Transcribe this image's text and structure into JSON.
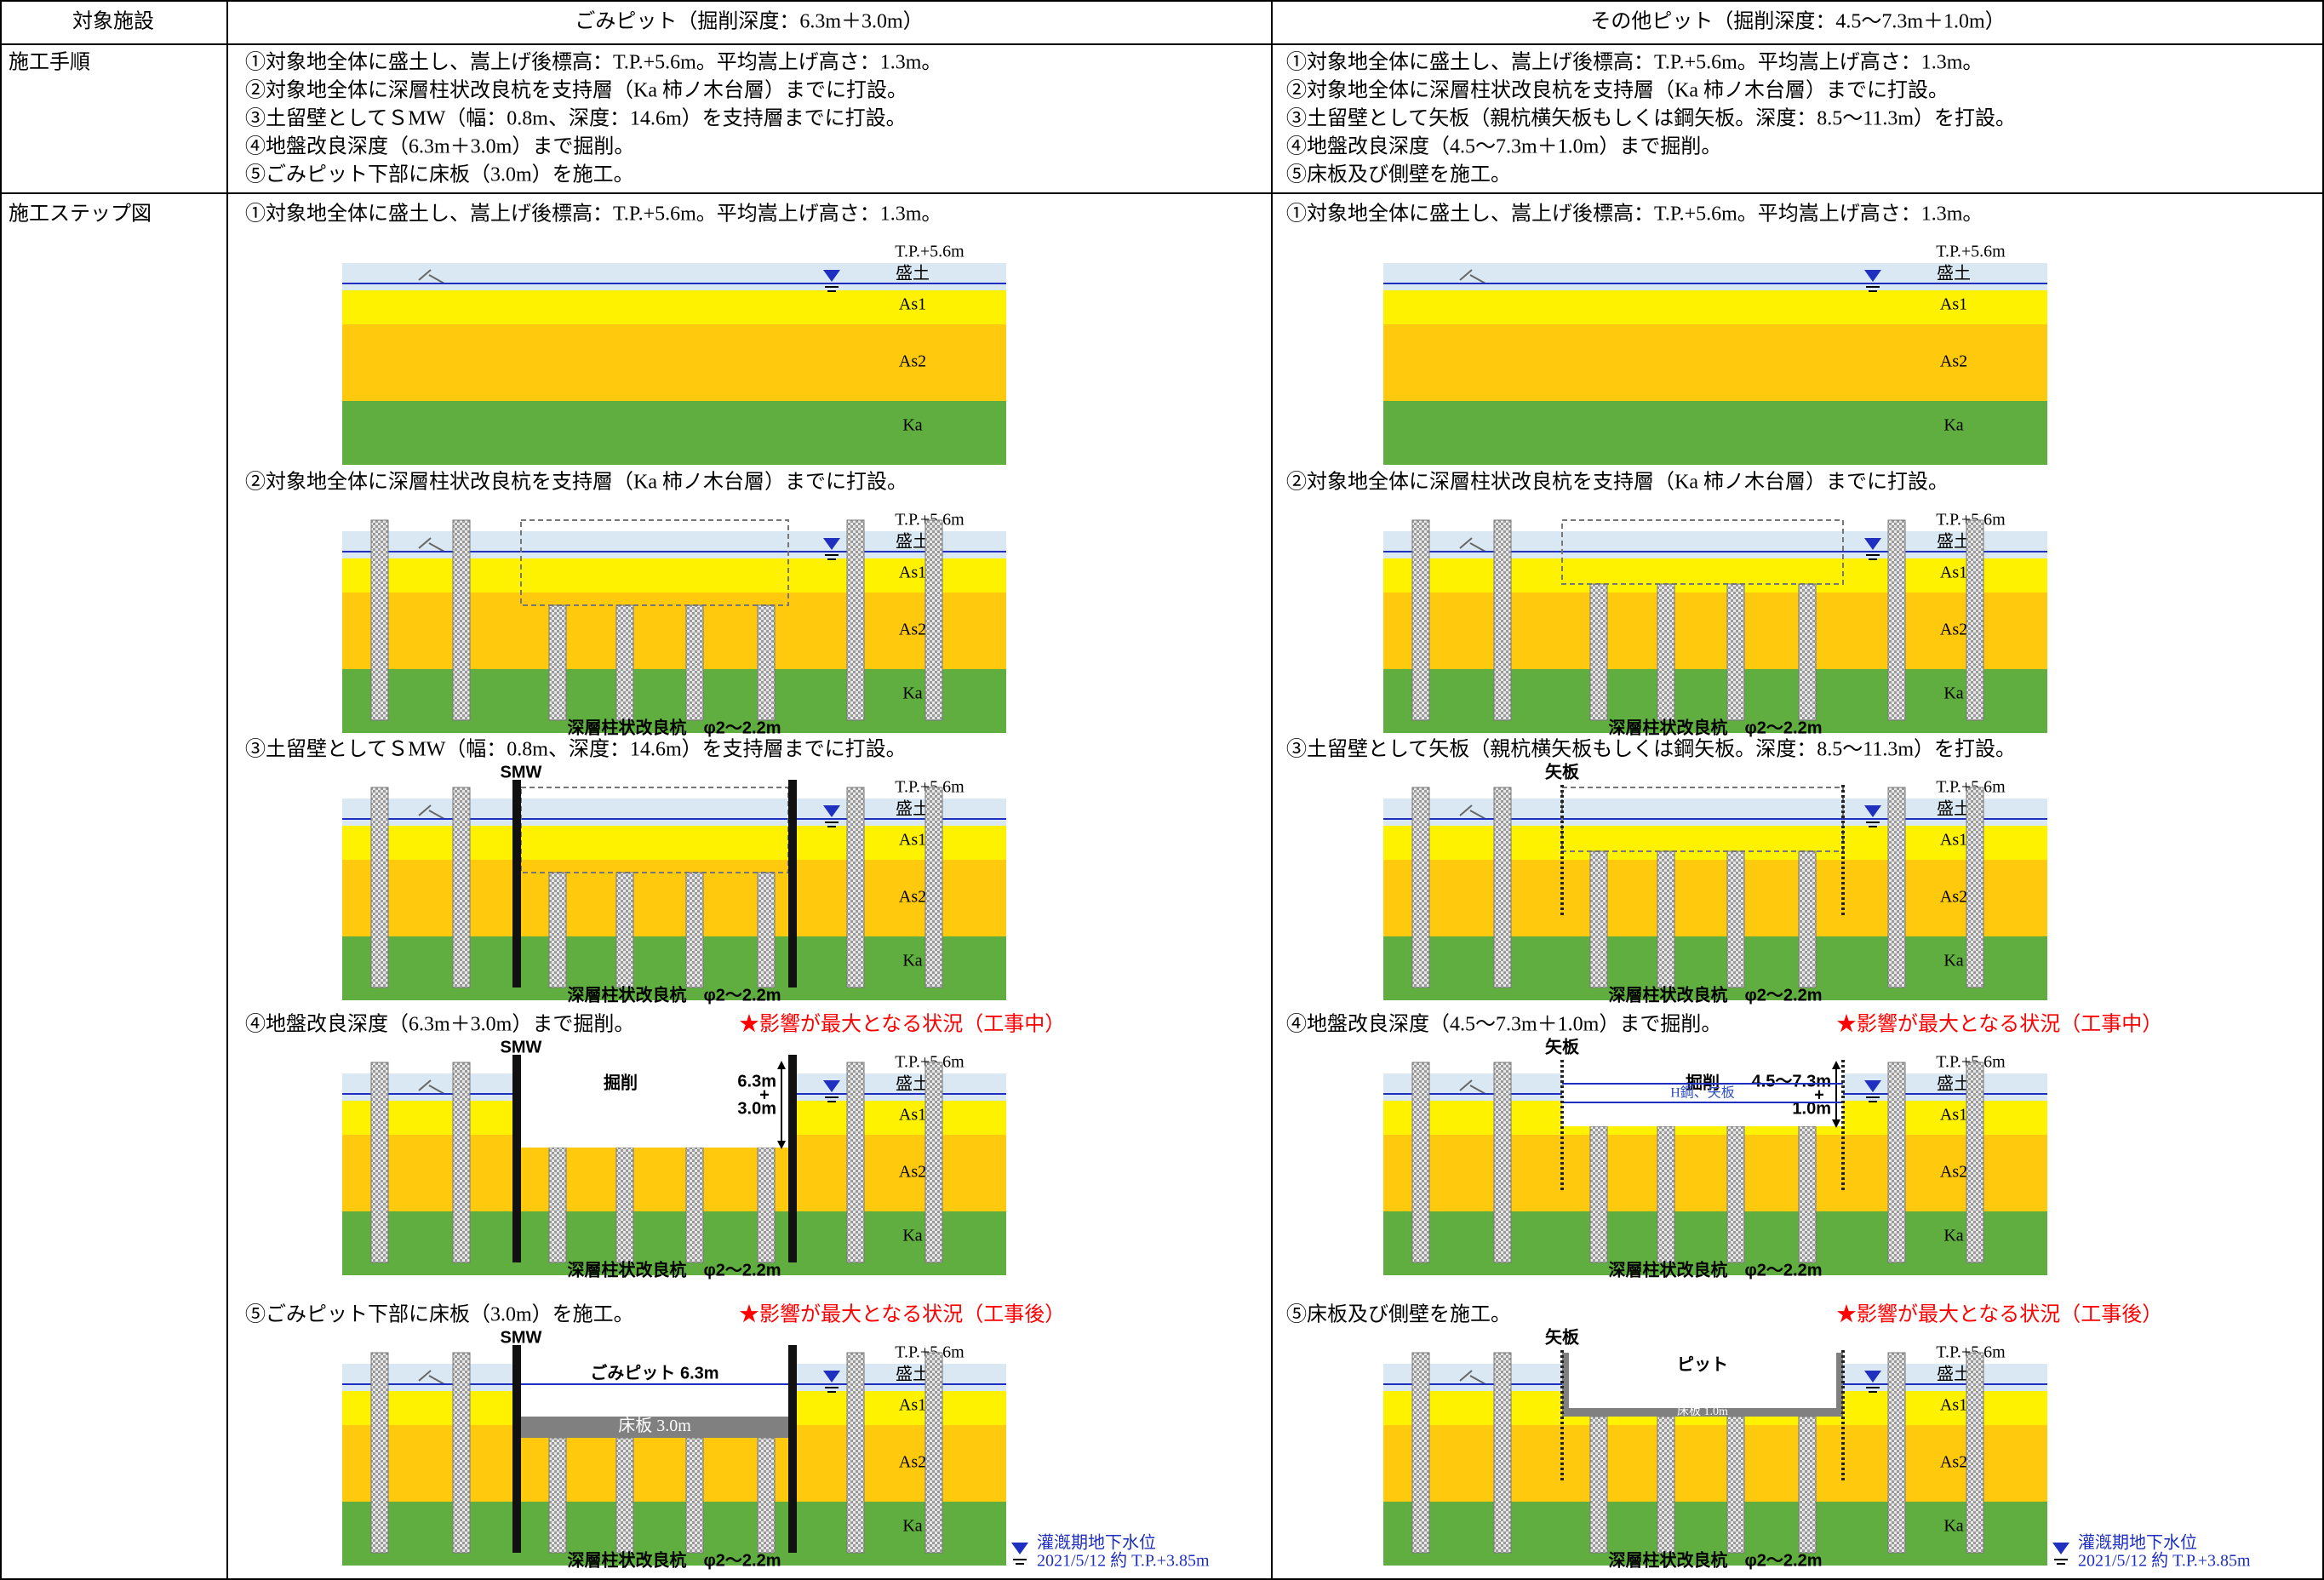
{
  "header": [
    "対象施設",
    "ごみピット（掘削深度：6.3m＋3.0m）",
    "その他ピット（掘削深度：4.5～7.3m＋1.0m）"
  ],
  "procedure": {
    "label": "施工手順",
    "left": [
      "①対象地全体に盛土し、嵩上げ後標高：T.P.+5.6m。平均嵩上げ高さ：1.3m。",
      "②対象地全体に深層柱状改良杭を支持層（Ka 柿ノ木台層）までに打設。",
      "③土留壁としてＳMW（幅：0.8m、深度：14.6m）を支持層までに打設。",
      "④地盤改良深度（6.3m＋3.0m）まで掘削。",
      "⑤ごみピット下部に床板（3.0m）を施工。"
    ],
    "right": [
      "①対象地全体に盛土し、嵩上げ後標高：T.P.+5.6m。平均嵩上げ高さ：1.3m。",
      "②対象地全体に深層柱状改良杭を支持層（Ka 柿ノ木台層）までに打設。",
      "③土留壁として矢板（親杭横矢板もしくは鋼矢板。深度：8.5～11.3m）を打設。",
      "④地盤改良深度（4.5～7.3m＋1.0m）まで掘削。",
      "⑤床板及び側壁を施工。"
    ]
  },
  "diagram_labels": {
    "tp": "T.P.+5.6m",
    "fill": "盛土",
    "as1": "As1",
    "as2": "As2",
    "ka": "Ka",
    "piles": "深層柱状改良杭　φ2～2.2m"
  },
  "steps": {
    "label": "施工ステップ図",
    "left": {
      "labels": {
        "wall": "SMW",
        "excavation": "掘削",
        "depth_top": "6.3m",
        "depth_plus": "+",
        "depth_bottom": "3.0m",
        "pit": "ごみピット 6.3m",
        "slab": "床板 3.0m"
      },
      "items": [
        {
          "caption": "①対象地全体に盛土し、嵩上げ後標高：T.P.+5.6m。平均嵩上げ高さ：1.3m。"
        },
        {
          "caption": "②対象地全体に深層柱状改良杭を支持層（Ka 柿ノ木台層）までに打設。"
        },
        {
          "caption": "③土留壁としてＳMW（幅：0.8m、深度：14.6m）を支持層までに打設。"
        },
        {
          "caption": "④地盤改良深度（6.3m＋3.0m）まで掘削。",
          "note": "★影響が最大となる状況（工事中）"
        },
        {
          "caption": "⑤ごみピット下部に床板（3.0m）を施工。",
          "note": "★影響が最大となる状況（工事後）"
        }
      ]
    },
    "right": {
      "labels": {
        "wall": "矢板",
        "excavation": "掘削",
        "depth_top": "4.5～7.3m",
        "depth_plus": "+",
        "depth_bottom": "1.0m",
        "beam": "H鋼、矢板",
        "pit": "ピット",
        "slab": "床板 1.0m"
      },
      "items": [
        {
          "caption": "①対象地全体に盛土し、嵩上げ後標高：T.P.+5.6m。平均嵩上げ高さ：1.3m。"
        },
        {
          "caption": "②対象地全体に深層柱状改良杭を支持層（Ka 柿ノ木台層）までに打設。"
        },
        {
          "caption": "③土留壁として矢板（親杭横矢板もしくは鋼矢板。深度：8.5～11.3m）を打設。"
        },
        {
          "caption": "④地盤改良深度（4.5～7.3m＋1.0m）まで掘削。",
          "note": "★影響が最大となる状況（工事中）"
        },
        {
          "caption": "⑤床板及び側壁を施工。",
          "note": "★影響が最大となる状況（工事後）"
        }
      ]
    }
  },
  "legend": {
    "title": "灌漑期地下水位",
    "detail": "2021/5/12 約 T.P.+3.85m"
  }
}
